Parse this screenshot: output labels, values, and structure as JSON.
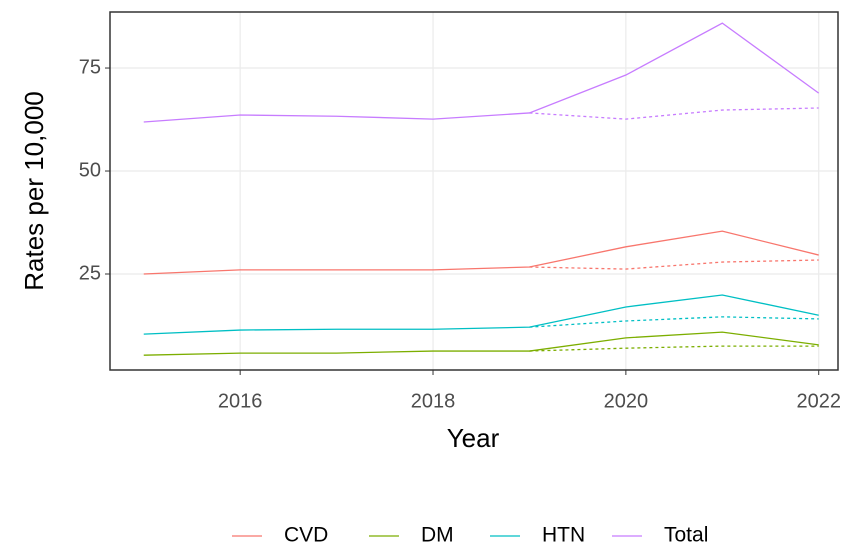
{
  "chart_data": {
    "type": "line",
    "x_label": "Year",
    "y_label": "Rates per 10,000",
    "x": [
      2015,
      2016,
      2017,
      2018,
      2019,
      2020,
      2021,
      2022
    ],
    "xlim": [
      2014.65,
      2022.2
    ],
    "xticks": [
      2016,
      2018,
      2020,
      2022
    ],
    "ylim": [
      1.7,
      88.6
    ],
    "yticks": [
      25,
      50,
      75
    ],
    "grid": true,
    "legend": "bottom",
    "series": [
      {
        "name": "CVD",
        "color": "#F8766D",
        "values": [
          25,
          26,
          26,
          26,
          26.7,
          31.6,
          35.4,
          29.6
        ],
        "dashed_values": [
          null,
          null,
          null,
          null,
          26.7,
          26.2,
          27.9,
          28.4
        ]
      },
      {
        "name": "DM",
        "color": "#7CAE00",
        "values": [
          5.3,
          5.8,
          5.8,
          6.3,
          6.3,
          9.5,
          10.9,
          7.8
        ],
        "dashed_values": [
          null,
          null,
          null,
          null,
          6.3,
          7.0,
          7.5,
          7.5
        ]
      },
      {
        "name": "HTN",
        "color": "#00BFC4",
        "values": [
          10.4,
          11.4,
          11.6,
          11.6,
          12.1,
          17,
          19.9,
          15
        ],
        "dashed_values": [
          null,
          null,
          null,
          null,
          12.1,
          13.6,
          14.6,
          14.1
        ]
      },
      {
        "name": "Total",
        "color": "#C77CFF",
        "values": [
          61.9,
          63.6,
          63.3,
          62.6,
          64.1,
          73.3,
          85.9,
          68.9
        ],
        "dashed_values": [
          null,
          null,
          null,
          null,
          64.1,
          62.6,
          64.8,
          65.3
        ]
      }
    ]
  }
}
